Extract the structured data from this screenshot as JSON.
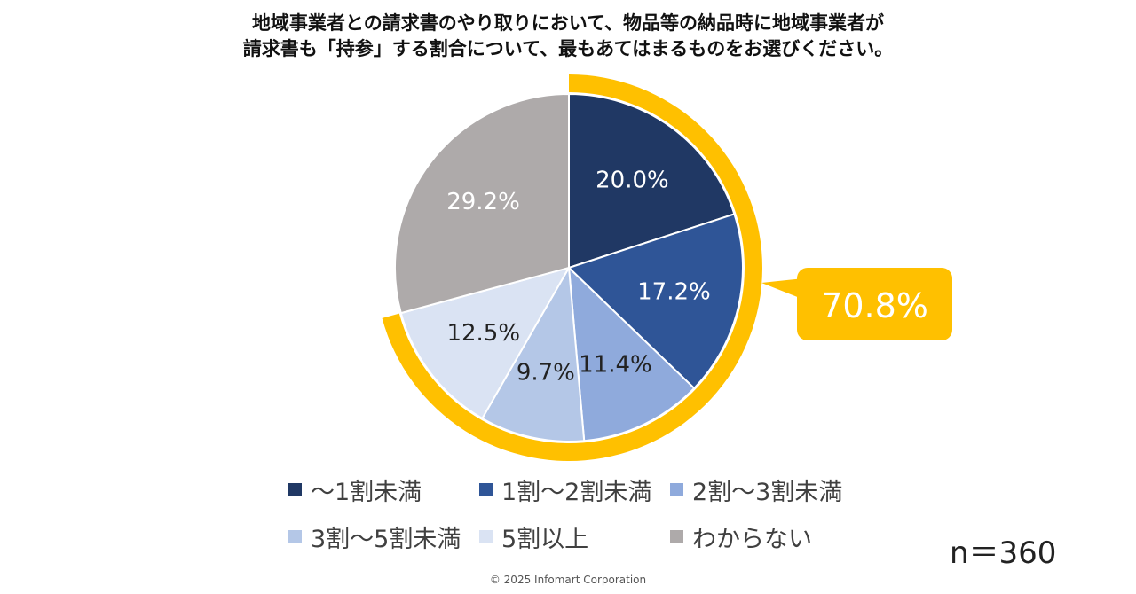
{
  "title_lines": [
    "地域事業者との請求書のやり取りにおいて、物品等の納品時に地域事業者が",
    "請求書も「持参」する割合について、最もあてはまるものをお選びください。"
  ],
  "chart_data": {
    "type": "pie",
    "title": "地域事業者との請求書のやり取りにおいて、物品等の納品時に地域事業者が請求書も「持参」する割合について、最もあてはまるものをお選びください。",
    "start_angle_deg": 0,
    "direction": "clockwise",
    "slices": [
      {
        "label": "～1割未満",
        "value": 20.0,
        "display": "20.0%",
        "color": "#203864",
        "text_color": "#ffffff"
      },
      {
        "label": "1割～2割未満",
        "value": 17.2,
        "display": "17.2%",
        "color": "#2f5597",
        "text_color": "#ffffff"
      },
      {
        "label": "2割～3割未満",
        "value": 11.4,
        "display": "11.4%",
        "color": "#8faadc",
        "text_color": "#222222"
      },
      {
        "label": "3割～5割未満",
        "value": 9.7,
        "display": "9.7%",
        "color": "#b4c7e7",
        "text_color": "#222222"
      },
      {
        "label": "5割以上",
        "value": 12.5,
        "display": "12.5%",
        "color": "#dae3f3",
        "text_color": "#222222"
      },
      {
        "label": "わからない",
        "value": 29.2,
        "display": "29.2%",
        "color": "#aeaaaa",
        "text_color": "#ffffff"
      }
    ],
    "highlight": {
      "text": "70.8%",
      "covers": [
        "～1割未満",
        "1割～2割未満",
        "2割～3割未満",
        "3割～5割未満",
        "5割以上"
      ],
      "color": "#ffc000"
    },
    "legend_position": "bottom"
  },
  "n_label": "n＝360",
  "copyright": "© 2025 Infomart Corporation"
}
